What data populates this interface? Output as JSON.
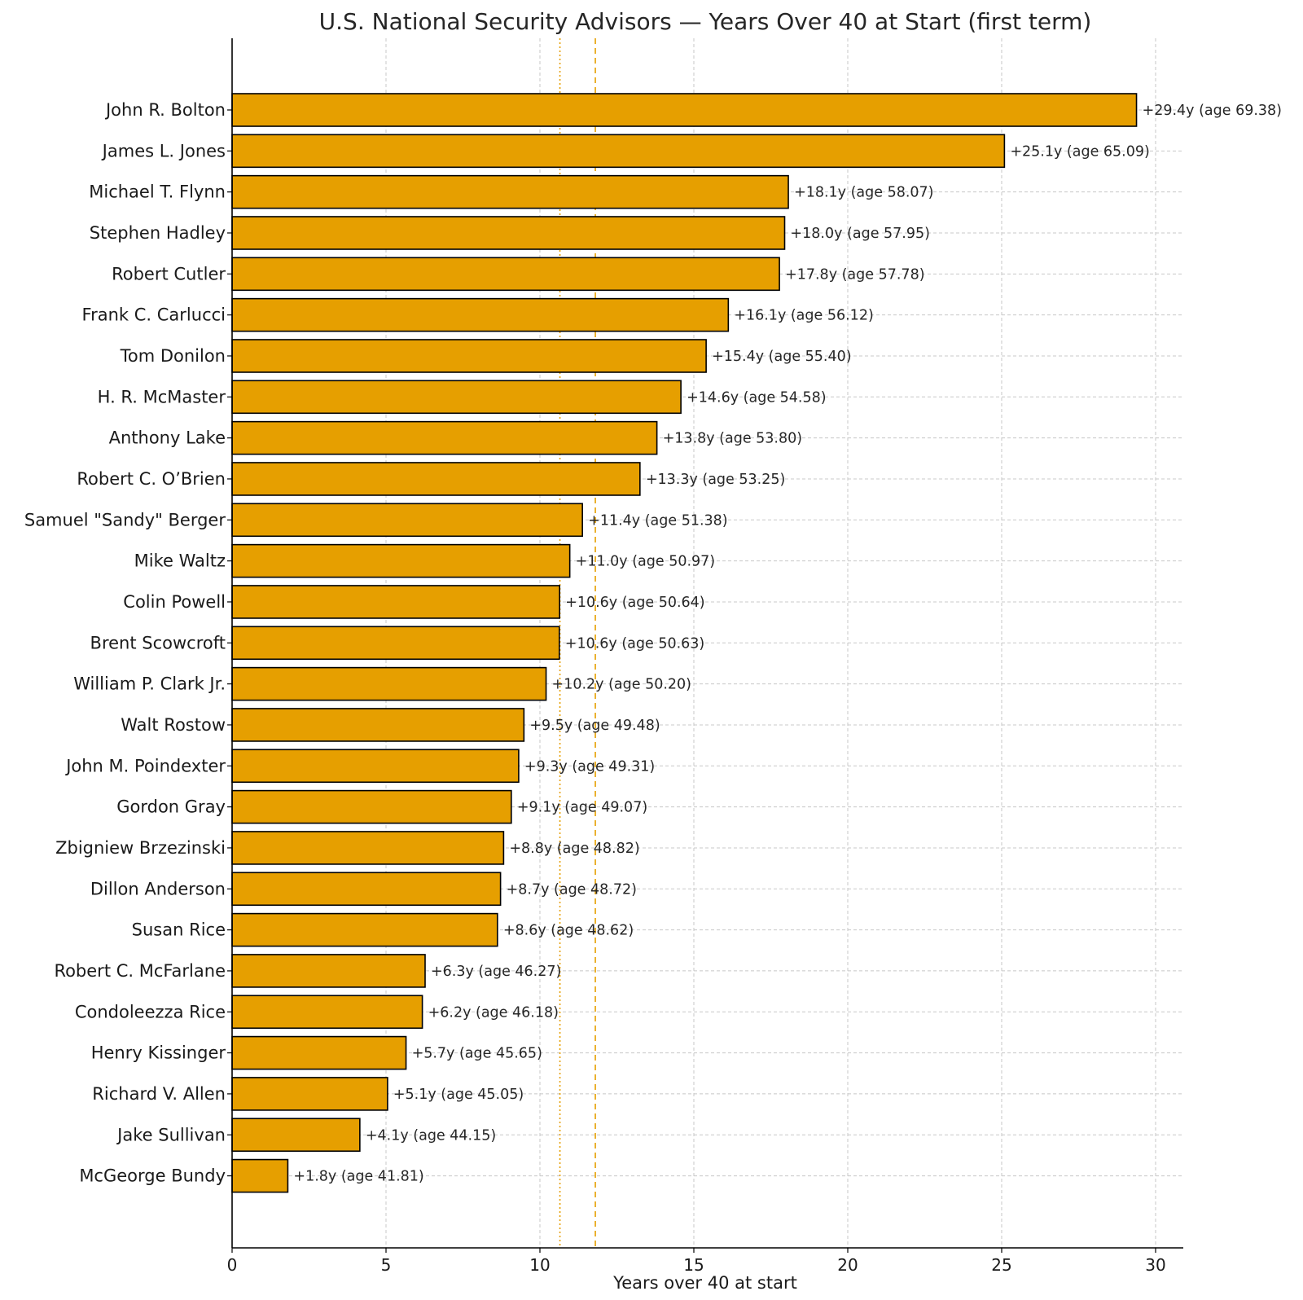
{
  "chart_data": {
    "type": "bar",
    "orientation": "horizontal",
    "title": "U.S. National Security Advisors — Years Over 40 at Start (first term)",
    "xlabel": "Years over 40 at start",
    "ylabel": "",
    "xlim": [
      0,
      30.9
    ],
    "xticks": [
      0,
      5,
      10,
      15,
      20,
      25,
      30
    ],
    "grid": true,
    "bar_color": "#E69F00",
    "bar_edge_color": "#000000",
    "reference_lines": [
      {
        "style": "dotted",
        "value": 10.65,
        "color": "#E69F00"
      },
      {
        "style": "dashed",
        "value": 11.8,
        "color": "#E69F00"
      }
    ],
    "categories": [
      "John R. Bolton",
      "James L. Jones",
      "Michael T. Flynn",
      "Stephen Hadley",
      "Robert Cutler",
      "Frank C. Carlucci",
      "Tom Donilon",
      "H. R. McMaster",
      "Anthony Lake",
      "Robert C. O’Brien",
      "Samuel \"Sandy\" Berger",
      "Mike Waltz",
      "Colin Powell",
      "Brent Scowcroft",
      "William P. Clark Jr.",
      "Walt Rostow",
      "John M. Poindexter",
      "Gordon Gray",
      "Zbigniew Brzezinski",
      "Dillon Anderson",
      "Susan Rice",
      "Robert C. McFarlane",
      "Condoleezza Rice",
      "Henry Kissinger",
      "Richard V. Allen",
      "Jake Sullivan",
      "McGeorge Bundy"
    ],
    "values": [
      29.38,
      25.09,
      18.07,
      17.95,
      17.78,
      16.12,
      15.4,
      14.58,
      13.8,
      13.25,
      11.38,
      10.97,
      10.64,
      10.63,
      10.2,
      9.48,
      9.31,
      9.07,
      8.82,
      8.72,
      8.62,
      6.27,
      6.18,
      5.65,
      5.05,
      4.15,
      1.81
    ],
    "data_labels": [
      "+29.4y  (age 69.38)",
      "+25.1y  (age 65.09)",
      "+18.1y  (age 58.07)",
      "+18.0y  (age 57.95)",
      "+17.8y  (age 57.78)",
      "+16.1y  (age 56.12)",
      "+15.4y  (age 55.40)",
      "+14.6y  (age 54.58)",
      "+13.8y  (age 53.80)",
      "+13.3y  (age 53.25)",
      "+11.4y  (age 51.38)",
      "+11.0y  (age 50.97)",
      "+10.6y  (age 50.64)",
      "+10.6y  (age 50.63)",
      "+10.2y  (age 50.20)",
      "+9.5y  (age 49.48)",
      "+9.3y  (age 49.31)",
      "+9.1y  (age 49.07)",
      "+8.8y  (age 48.82)",
      "+8.7y  (age 48.72)",
      "+8.6y  (age 48.62)",
      "+6.3y  (age 46.27)",
      "+6.2y  (age 46.18)",
      "+5.7y  (age 45.65)",
      "+5.1y  (age 45.05)",
      "+4.1y  (age 44.15)",
      "+1.8y  (age 41.81)"
    ]
  }
}
